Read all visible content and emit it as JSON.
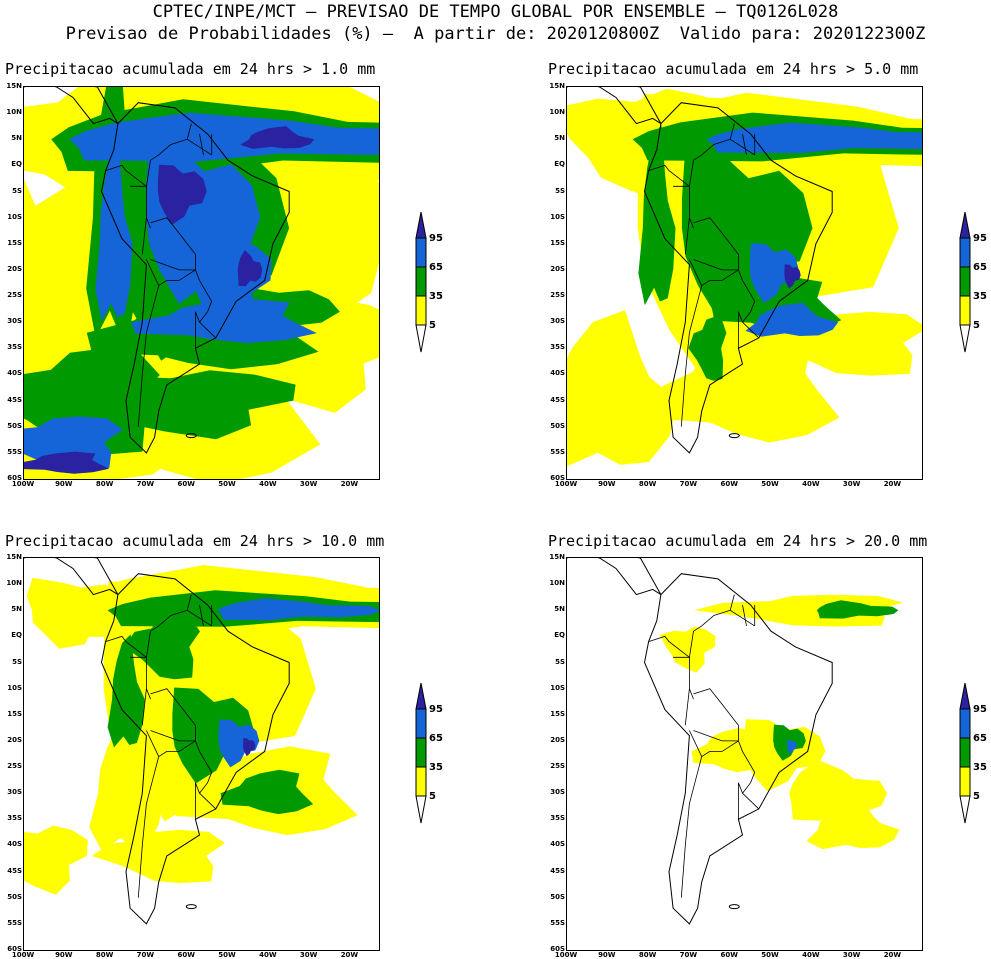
{
  "header": {
    "line1": "CPTEC/INPE/MCT – PREVISAO DE TEMPO GLOBAL POR ENSEMBLE – TQ0126L028",
    "line2": "Previsao de Probabilidades (%) –  A partir de: 2020120800Z  Valido para: 2020122300Z"
  },
  "panels": [
    {
      "title": "Precipitacao acumulada em 24 hrs > 1.0 mm"
    },
    {
      "title": "Precipitacao acumulada em 24 hrs > 5.0 mm"
    },
    {
      "title": "Precipitacao acumulada em 24 hrs > 10.0 mm"
    },
    {
      "title": "Precipitacao acumulada em 24 hrs > 20.0 mm"
    }
  ],
  "lat_labels": [
    "15N",
    "10N",
    "5N",
    "EQ",
    "5S",
    "10S",
    "15S",
    "20S",
    "25S",
    "30S",
    "35S",
    "40S",
    "45S",
    "50S",
    "55S",
    "60S"
  ],
  "lon_labels": [
    "100W",
    "90W",
    "80W",
    "70W",
    "60W",
    "50W",
    "40W",
    "30W",
    "20W"
  ],
  "legend": {
    "levels": [
      "95",
      "65",
      "35",
      "5"
    ],
    "colors": {
      "lt5": "#ffffff",
      "c5": "#ffff00",
      "c35": "#009900",
      "c65": "#1565d8",
      "c95": "#2a22a0"
    }
  }
}
